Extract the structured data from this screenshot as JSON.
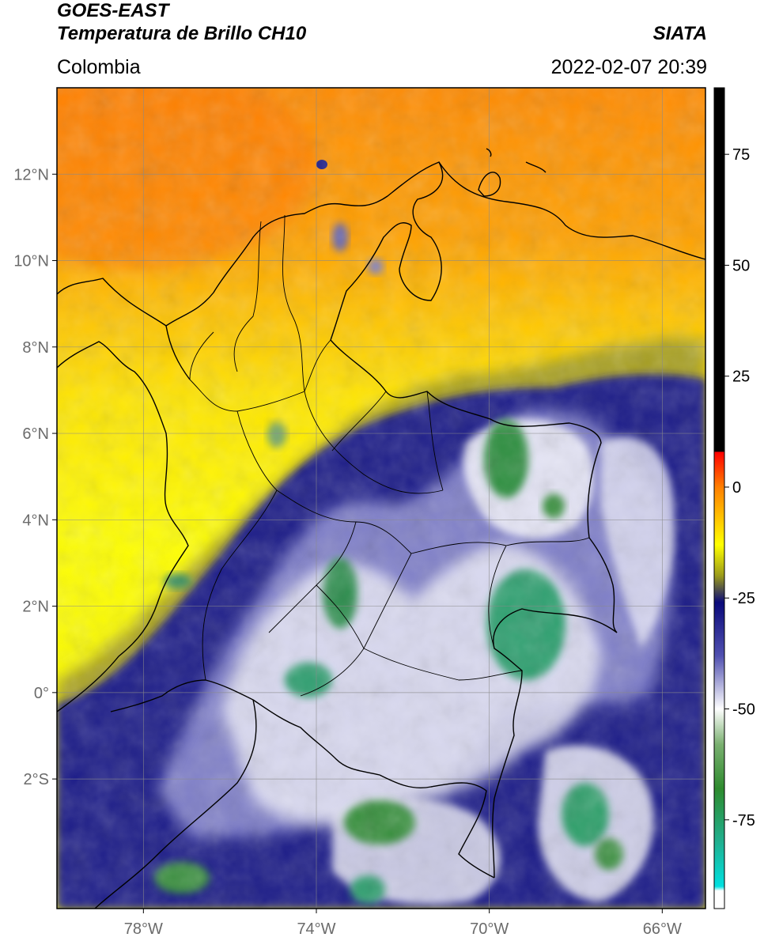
{
  "header": {
    "satellite": "GOES-EAST",
    "product": "Temperatura de Brillo CH10",
    "region": "Colombia",
    "source": "SIATA",
    "datetime": "2022-02-07 20:39"
  },
  "map": {
    "lon_range": [
      -80,
      -65
    ],
    "lat_range": [
      -5,
      14
    ],
    "lat_ticks": [
      {
        "value": 12,
        "label": "12°N"
      },
      {
        "value": 10,
        "label": "10°N"
      },
      {
        "value": 8,
        "label": "8°N"
      },
      {
        "value": 6,
        "label": "6°N"
      },
      {
        "value": 4,
        "label": "4°N"
      },
      {
        "value": 2,
        "label": "2°N"
      },
      {
        "value": 0,
        "label": "0°"
      },
      {
        "value": -2,
        "label": "2°S"
      }
    ],
    "lon_ticks": [
      {
        "value": -78,
        "label": "78°W"
      },
      {
        "value": -74,
        "label": "74°W"
      },
      {
        "value": -70,
        "label": "70°W"
      },
      {
        "value": -66,
        "label": "66°W"
      }
    ],
    "grid": true
  },
  "colorbar": {
    "range": [
      -95,
      90
    ],
    "ticks": [
      {
        "value": 75,
        "label": "75"
      },
      {
        "value": 50,
        "label": "50"
      },
      {
        "value": 25,
        "label": "25"
      },
      {
        "value": 0,
        "label": "0"
      },
      {
        "value": -25,
        "label": "-25"
      },
      {
        "value": -50,
        "label": "-50"
      },
      {
        "value": -75,
        "label": "-75"
      }
    ],
    "stops": [
      {
        "value": 90,
        "color": "#000000"
      },
      {
        "value": 8,
        "color": "#000000"
      },
      {
        "value": 7.9,
        "color": "#ff0000"
      },
      {
        "value": 0,
        "color": "#ff7f00"
      },
      {
        "value": -13,
        "color": "#ffff00"
      },
      {
        "value": -20,
        "color": "#9a9a1a"
      },
      {
        "value": -26,
        "color": "#0a0a7a"
      },
      {
        "value": -38,
        "color": "#5050b0"
      },
      {
        "value": -50,
        "color": "#ffffff"
      },
      {
        "value": -58,
        "color": "#7ab070"
      },
      {
        "value": -68,
        "color": "#2e8b2e"
      },
      {
        "value": -80,
        "color": "#20b090"
      },
      {
        "value": -90,
        "color": "#00e0e0"
      },
      {
        "value": -91,
        "color": "#ffffff"
      },
      {
        "value": -95,
        "color": "#ffffff"
      }
    ]
  }
}
